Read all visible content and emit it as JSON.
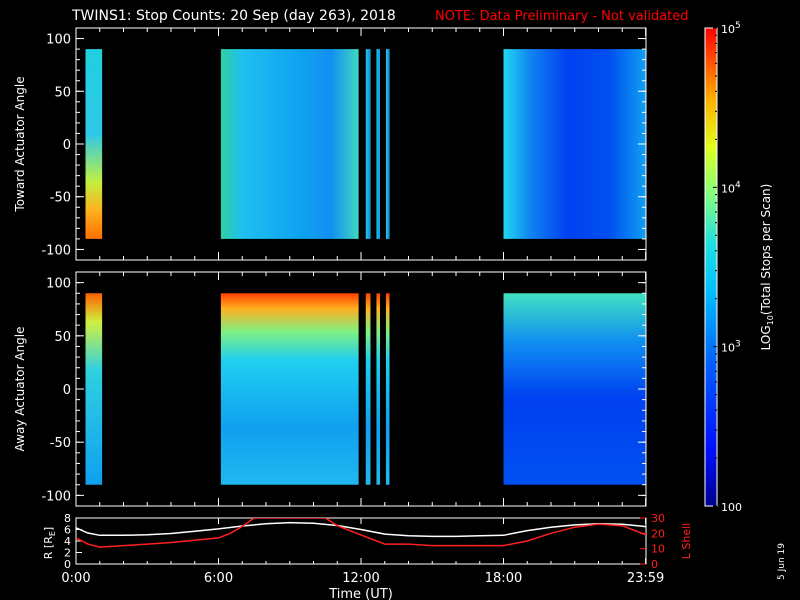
{
  "title": {
    "main": "TWINS1: Stop Counts: 20 Sep (day 263), 2018",
    "note": "NOTE: Data Preliminary - Not validated"
  },
  "stamp": "5 Jun 19",
  "colors": {
    "background": "#000000",
    "text": "#ffffff",
    "note": "#ff0000",
    "r_line": "#ffffff",
    "lshell_line": "#ff2020"
  },
  "chart_data": [
    {
      "type": "heatmap",
      "name": "toward",
      "ylabel": "Toward Actuator Angle",
      "ylim": [
        -110,
        110
      ],
      "yticks": [
        100,
        50,
        0,
        -50,
        -100
      ],
      "xlim_hours": [
        0,
        24
      ],
      "data_angle_range": [
        -90,
        90
      ],
      "data_segments_hours": [
        [
          0.4,
          1.1
        ],
        [
          6.1,
          11.9
        ],
        [
          12.2,
          12.4
        ],
        [
          12.65,
          12.8
        ],
        [
          13.05,
          13.2
        ],
        [
          18.0,
          23.99
        ]
      ]
    },
    {
      "type": "heatmap",
      "name": "away",
      "ylabel": "Away Actuator Angle",
      "ylim": [
        -110,
        110
      ],
      "yticks": [
        100,
        50,
        0,
        -50,
        -100
      ],
      "xlim_hours": [
        0,
        24
      ],
      "data_angle_range": [
        -90,
        90
      ],
      "data_segments_hours": [
        [
          0.4,
          1.1
        ],
        [
          6.1,
          11.9
        ],
        [
          12.2,
          12.4
        ],
        [
          12.65,
          12.8
        ],
        [
          13.05,
          13.2
        ],
        [
          18.0,
          23.99
        ]
      ]
    },
    {
      "type": "line",
      "name": "orbit",
      "xlabel": "Time (UT)",
      "xticks": [
        "0:00",
        "6:00",
        "12:00",
        "18:00",
        "23:59"
      ],
      "xtick_hours": [
        0,
        6,
        12,
        18,
        23.983
      ],
      "ylabel_left": "R [R",
      "ylabel_left_sub": "E",
      "ylabel_left_end": "]",
      "ylim_left": [
        0,
        8
      ],
      "yticks_left": [
        "8",
        "6",
        "4",
        "2",
        "0"
      ],
      "yticks_left_values": [
        8,
        6,
        4,
        2,
        0
      ],
      "ylabel_right": "L Shell",
      "ylim_right": [
        0,
        30
      ],
      "yticks_right": [
        "30",
        "20",
        "10",
        "0"
      ],
      "yticks_right_values": [
        30,
        20,
        10,
        0
      ],
      "series": [
        {
          "axis": "left",
          "x": [
            0,
            0.5,
            1,
            2,
            3,
            4,
            5,
            6,
            7,
            8,
            9,
            10,
            11,
            12,
            13,
            14,
            15,
            16,
            17,
            18,
            19,
            20,
            21,
            22,
            23,
            24
          ],
          "y": [
            6.3,
            5.4,
            5.0,
            5.0,
            5.1,
            5.3,
            5.7,
            6.1,
            6.6,
            7.0,
            7.2,
            7.1,
            6.7,
            6.0,
            5.2,
            4.9,
            4.8,
            4.8,
            4.9,
            5.0,
            5.8,
            6.4,
            6.8,
            7.0,
            6.9,
            6.5
          ]
        },
        {
          "axis": "right",
          "x": [
            0,
            0.5,
            1,
            2,
            3,
            4,
            5,
            6,
            6.5,
            7,
            7.5,
            10.5,
            11,
            12,
            12.5,
            13,
            14,
            15,
            16,
            17,
            18,
            19,
            20,
            21,
            22,
            23,
            24
          ],
          "y": [
            17,
            13,
            11,
            12,
            13,
            14,
            15.5,
            17,
            20,
            24.5,
            30,
            30,
            25,
            19,
            16,
            13,
            13,
            12,
            12,
            12,
            12,
            15,
            20,
            24,
            26,
            25,
            19
          ]
        }
      ]
    },
    {
      "type": "colorbar",
      "label_pre": "LOG",
      "label_sub": "10",
      "label_post": "(Total Stops per Scan)",
      "log_range": [
        2,
        5
      ],
      "ticks": [
        {
          "log": 5,
          "base": "10",
          "exp": "5"
        },
        {
          "log": 4,
          "base": "10",
          "exp": "4"
        },
        {
          "log": 3,
          "base": "10",
          "exp": "3"
        },
        {
          "log": 2,
          "base": "100",
          "exp": ""
        }
      ]
    }
  ]
}
